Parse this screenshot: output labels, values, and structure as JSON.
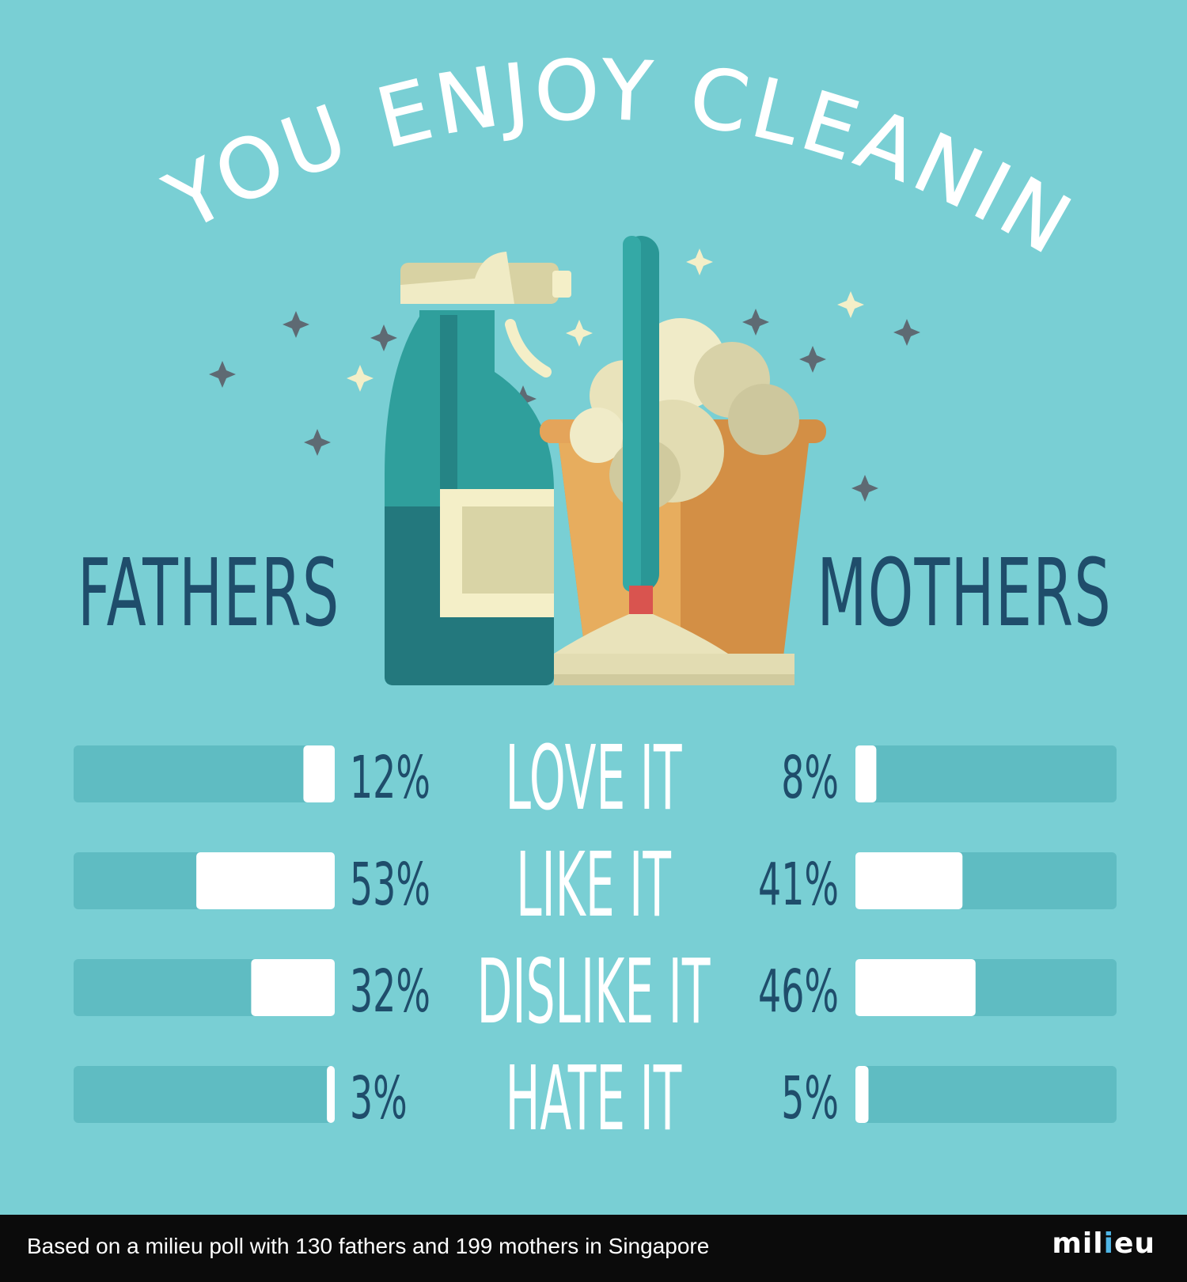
{
  "title": "DO YOU ENJOY CLEANING?",
  "colors": {
    "background": "#79cfd4",
    "track": "#5fbcc2",
    "bar": "#ffffff",
    "label_dark": "#1f4d6b",
    "footer_bg": "#0b0b0b"
  },
  "groups": {
    "left": "FATHERS",
    "right": "MOTHERS"
  },
  "chart_data": {
    "type": "bar",
    "categories": [
      "LOVE IT",
      "LIKE IT",
      "DISLIKE IT",
      "HATE IT"
    ],
    "series": [
      {
        "name": "FATHERS",
        "values": [
          12,
          53,
          32,
          3
        ],
        "labels": [
          "12%",
          "53%",
          "32%",
          "3%"
        ]
      },
      {
        "name": "MOTHERS",
        "values": [
          8,
          41,
          46,
          5
        ],
        "labels": [
          "8%",
          "41%",
          "46%",
          "5%"
        ]
      }
    ],
    "unit": "%",
    "ylim": [
      0,
      100
    ],
    "legend": "none",
    "grid": false
  },
  "footer": {
    "note": "Based on a milieu poll with 130 fathers and 199 mothers in Singapore",
    "brand": "milieu"
  }
}
